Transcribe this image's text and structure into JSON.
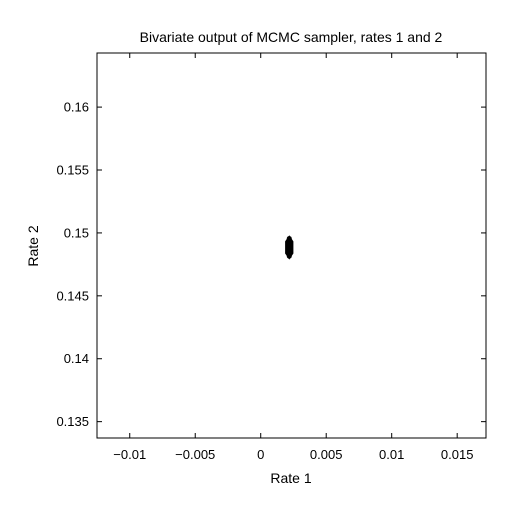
{
  "chart_data": {
    "type": "scatter",
    "title": "Bivariate output of MCMC sampler, rates 1 and 2",
    "xlabel": "Rate 1",
    "ylabel": "Rate 2",
    "xlim": [
      -0.0125,
      0.0172
    ],
    "ylim": [
      0.1337,
      0.1643
    ],
    "xticks": [
      {
        "value": -0.01,
        "label": "−0.01"
      },
      {
        "value": -0.005,
        "label": "−0.005"
      },
      {
        "value": 0,
        "label": "0"
      },
      {
        "value": 0.005,
        "label": "0.005"
      },
      {
        "value": 0.01,
        "label": "0.01"
      },
      {
        "value": 0.015,
        "label": "0.015"
      }
    ],
    "yticks": [
      {
        "value": 0.135,
        "label": "0.135"
      },
      {
        "value": 0.14,
        "label": "0.14"
      },
      {
        "value": 0.145,
        "label": "0.145"
      },
      {
        "value": 0.15,
        "label": "0.15"
      },
      {
        "value": 0.155,
        "label": "0.155"
      },
      {
        "value": 0.16,
        "label": "0.16"
      }
    ],
    "grid": false,
    "series": [
      {
        "color": "#000000",
        "points": [
          {
            "x": 0.00218,
            "y": 0.14815
          },
          {
            "x": 0.00218,
            "y": 0.14835
          },
          {
            "x": 0.00218,
            "y": 0.14855
          },
          {
            "x": 0.00218,
            "y": 0.14875
          },
          {
            "x": 0.00218,
            "y": 0.14895
          },
          {
            "x": 0.00218,
            "y": 0.14915
          },
          {
            "x": 0.00218,
            "y": 0.14935
          },
          {
            "x": 0.00218,
            "y": 0.14955
          }
        ]
      }
    ],
    "cluster": {
      "x_center": 0.00218,
      "x_half_width": 0.00028,
      "y_min": 0.14795,
      "y_max": 0.14975,
      "y_shoulder_low": 0.14838,
      "y_shoulder_high": 0.14932
    }
  }
}
